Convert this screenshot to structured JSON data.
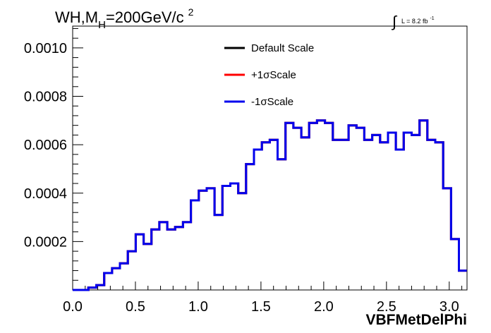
{
  "chart_data": {
    "type": "step",
    "title": {
      "prefix": "WH,M",
      "sub": "H",
      "middle": "=200GeV/c",
      "sup": "2"
    },
    "lumi": {
      "symbol": "∫",
      "text": "L = 8.2 fb",
      "sup": "-1"
    },
    "xlabel": "VBFMetDelPhi",
    "ylabel": "",
    "xlim": [
      0,
      3.1416
    ],
    "ylim": [
      0,
      0.00109
    ],
    "x_ticks": [
      "0.0",
      "0.5",
      "1.0",
      "1.5",
      "2.0",
      "2.5",
      "3.0"
    ],
    "x_tick_values": [
      0,
      0.5,
      1.0,
      1.5,
      2.0,
      2.5,
      3.0
    ],
    "y_ticks": [
      "0.0002",
      "0.0004",
      "0.0006",
      "0.0008",
      "0.0010"
    ],
    "y_tick_values": [
      0.0002,
      0.0004,
      0.0006,
      0.0008,
      0.001
    ],
    "legend_position": "top-center",
    "bin_width": 0.0628,
    "series": [
      {
        "name": "Default Scale",
        "color": "#000000",
        "values": [
          0.0,
          0.0,
          1e-05,
          2e-05,
          7e-05,
          9e-05,
          0.00011,
          0.00016,
          0.00023,
          0.00019,
          0.00025,
          0.00028,
          0.00025,
          0.00026,
          0.00028,
          0.00037,
          0.00041,
          0.00042,
          0.00031,
          0.00043,
          0.00044,
          0.0004,
          0.00052,
          0.00058,
          0.00061,
          0.00062,
          0.00054,
          0.00069,
          0.00067,
          0.00063,
          0.00069,
          0.0007,
          0.00069,
          0.00062,
          0.00062,
          0.00068,
          0.00067,
          0.00062,
          0.00064,
          0.00061,
          0.00065,
          0.00058,
          0.00065,
          0.00064,
          0.0007,
          0.00062,
          0.00061,
          0.00042,
          0.00021,
          8e-05
        ]
      },
      {
        "name": "+1σScale",
        "color": "#ff0000",
        "values": [
          0.0,
          0.0,
          1e-05,
          2e-05,
          7e-05,
          9e-05,
          0.00011,
          0.00016,
          0.00023,
          0.00019,
          0.00025,
          0.00028,
          0.00025,
          0.00026,
          0.00028,
          0.00037,
          0.00041,
          0.00042,
          0.00031,
          0.00043,
          0.00044,
          0.0004,
          0.00052,
          0.00058,
          0.00061,
          0.00062,
          0.00054,
          0.00069,
          0.00067,
          0.00063,
          0.00069,
          0.0007,
          0.00069,
          0.00062,
          0.00062,
          0.00068,
          0.00067,
          0.00062,
          0.00064,
          0.00061,
          0.00065,
          0.00058,
          0.00065,
          0.00064,
          0.0007,
          0.00062,
          0.00061,
          0.00042,
          0.00021,
          8e-05
        ]
      },
      {
        "name": "-1σScale",
        "color": "#0000ee",
        "values": [
          0.0,
          0.0,
          1e-05,
          2e-05,
          7e-05,
          9e-05,
          0.00011,
          0.00016,
          0.00023,
          0.00019,
          0.00025,
          0.00028,
          0.00025,
          0.00026,
          0.00028,
          0.00037,
          0.00041,
          0.00042,
          0.00031,
          0.00043,
          0.00044,
          0.0004,
          0.00052,
          0.00058,
          0.00061,
          0.00062,
          0.00054,
          0.00069,
          0.00067,
          0.00063,
          0.00069,
          0.0007,
          0.00069,
          0.00062,
          0.00062,
          0.00068,
          0.00067,
          0.00062,
          0.00064,
          0.00061,
          0.00065,
          0.00058,
          0.00065,
          0.00064,
          0.0007,
          0.00062,
          0.00061,
          0.00042,
          0.00021,
          8e-05
        ]
      }
    ]
  }
}
